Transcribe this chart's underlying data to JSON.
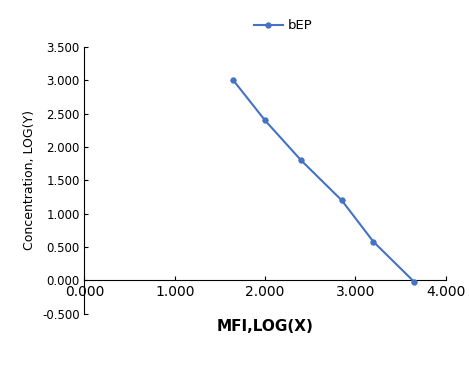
{
  "x": [
    1.65,
    2.0,
    2.4,
    2.85,
    3.2,
    3.65
  ],
  "y": [
    3.0,
    2.4,
    1.8,
    1.2,
    0.58,
    -0.02
  ],
  "line_color": "#4472C4",
  "marker_color": "#4472C4",
  "marker_style": "o",
  "marker_size": 4,
  "line_width": 1.5,
  "xlabel": "MFI,LOG(X)",
  "ylabel": "Concentration, LOG(Y)",
  "legend_label": "bEP",
  "xlim": [
    0.0,
    4.0
  ],
  "ylim": [
    -0.5,
    3.5
  ],
  "xticks": [
    0.0,
    1.0,
    2.0,
    3.0,
    4.0
  ],
  "yticks": [
    -0.5,
    0.0,
    0.5,
    1.0,
    1.5,
    2.0,
    2.5,
    3.0,
    3.5
  ],
  "xtick_labels": [
    "0.000",
    "1.000",
    "2.000",
    "3.000",
    "4.000"
  ],
  "ytick_labels": [
    "-0.500",
    "0.000",
    "0.500",
    "1.000",
    "1.500",
    "2.000",
    "2.500",
    "3.000",
    "3.500"
  ],
  "xlabel_fontsize": 11,
  "ylabel_fontsize": 9,
  "tick_fontsize": 8.5,
  "legend_fontsize": 9.5,
  "background_color": "#ffffff"
}
